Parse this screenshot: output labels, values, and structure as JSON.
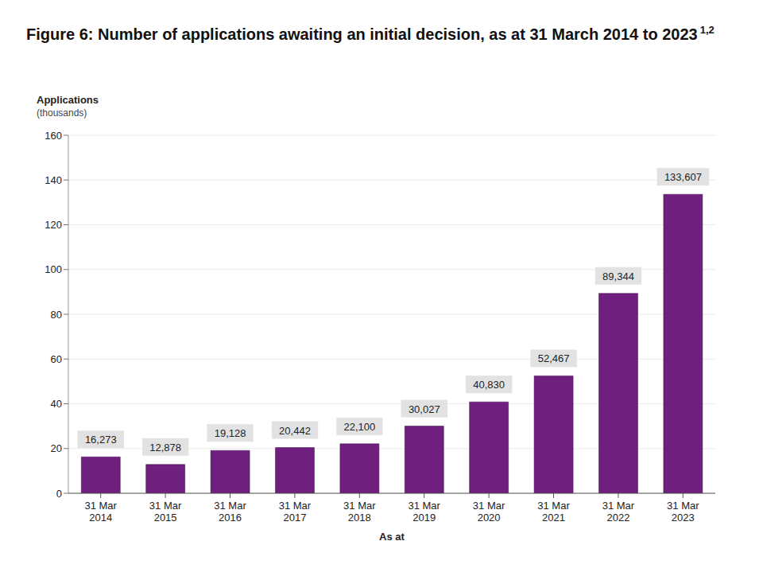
{
  "chart_data": {
    "type": "bar",
    "title": "Figure 6: Number of applications awaiting an initial decision, as at 31 March 2014 to 2023",
    "title_superscript": "1,2",
    "ylabel": [
      "Applications",
      "(thousands)"
    ],
    "xlabel": "As at",
    "categories": [
      "31 Mar 2014",
      "31 Mar 2015",
      "31 Mar 2016",
      "31 Mar 2017",
      "31 Mar 2018",
      "31 Mar 2019",
      "31 Mar 2020",
      "31 Mar 2021",
      "31 Mar 2022",
      "31 Mar 2023"
    ],
    "values": [
      16.273,
      12.878,
      19.128,
      20.442,
      22.1,
      30.027,
      40.83,
      52.467,
      89.344,
      133.607
    ],
    "value_labels": [
      "16,273",
      "12,878",
      "19,128",
      "20,442",
      "22,100",
      "30,027",
      "40,830",
      "52,467",
      "89,344",
      "133,607"
    ],
    "color": "#6f1f7e",
    "ylim": [
      0,
      160
    ],
    "yticks": [
      0,
      20,
      40,
      60,
      80,
      100,
      120,
      140,
      160
    ],
    "grid": true,
    "data_labels": true
  }
}
